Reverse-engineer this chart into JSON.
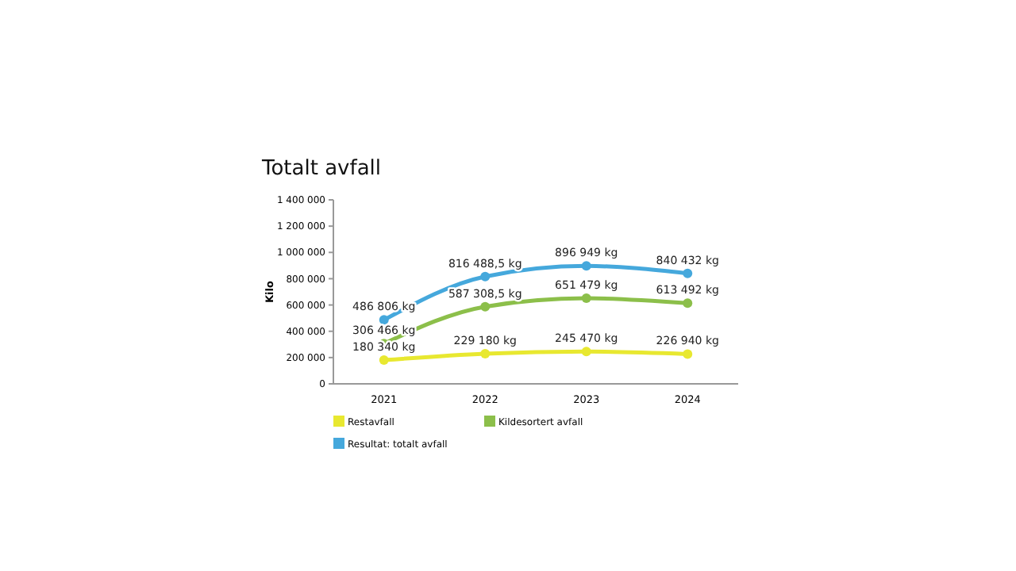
{
  "chart_data": {
    "type": "line",
    "title": "Totalt avfall",
    "ylabel": "Kilo",
    "categories": [
      "2021",
      "2022",
      "2023",
      "2024"
    ],
    "series": [
      {
        "name": "Restavfall",
        "color": "#e8e830",
        "values": [
          180340,
          229180,
          245470,
          226940
        ],
        "value_labels": [
          "180 340 kg",
          "229 180 kg",
          "245 470 kg",
          "226 940 kg"
        ]
      },
      {
        "name": "Kildesortert avfall",
        "color": "#8cbf4a",
        "values": [
          306466,
          587308.5,
          651479,
          613492
        ],
        "value_labels": [
          "306 466 kg",
          "587 308,5 kg",
          "651 479 kg",
          "613 492 kg"
        ]
      },
      {
        "name": "Resultat: totalt avfall",
        "color": "#45a8dc",
        "values": [
          486806,
          816488.5,
          896949,
          840432
        ],
        "value_labels": [
          "486 806 kg",
          "816 488,5 kg",
          "896 949 kg",
          "840 432 kg"
        ]
      }
    ],
    "ylim": [
      0,
      1400000
    ],
    "yticks": [
      0,
      {
        "value": 200000,
        "label": "200 000"
      },
      {
        "value": 400000,
        "label": "400 000"
      },
      {
        "value": 600000,
        "label": "600 000"
      },
      {
        "value": 800000,
        "label": "800 000"
      },
      {
        "value": 1000000,
        "label": "1 000 000"
      },
      {
        "value": 1200000,
        "label": "1 200 000"
      },
      {
        "value": 1400000,
        "label": "1 400 000"
      }
    ],
    "legend": "bottom",
    "marker": "circle",
    "line_style": "solid",
    "grid": false
  }
}
